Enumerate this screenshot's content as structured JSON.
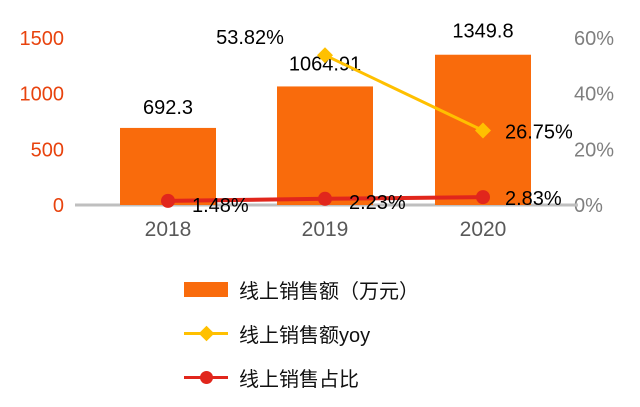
{
  "chart_data": {
    "type": "combo",
    "title": "",
    "categories": [
      "2018",
      "2019",
      "2020"
    ],
    "series": [
      {
        "name": "线上销售额（万元）",
        "type": "bar",
        "axis": "left",
        "color": "#F96B0C",
        "values": [
          692.3,
          1064.91,
          1349.8
        ],
        "labels": [
          "692.3",
          "1064.91",
          "1349.8"
        ],
        "label_offsets": [
          [
            0,
            -14,
            "middle"
          ],
          [
            0,
            -16,
            "middle"
          ],
          [
            0,
            -17,
            "middle"
          ]
        ]
      },
      {
        "name": "线上销售额yoy",
        "type": "line",
        "axis": "right",
        "color": "#FFC000",
        "marker": "diamond",
        "stroke_width": 3,
        "values": [
          null,
          53.82,
          26.75
        ],
        "labels": [
          null,
          "53.82%",
          "26.75%"
        ],
        "label_offsets": [
          null,
          [
            -75,
            -11,
            "middle"
          ],
          [
            22,
            8,
            "start"
          ]
        ]
      },
      {
        "name": "线上销售占比",
        "type": "line",
        "axis": "right",
        "color": "#E1261C",
        "marker": "circle",
        "stroke_width": 4,
        "values": [
          1.48,
          2.23,
          2.83
        ],
        "labels": [
          "1.48%",
          "2.23%",
          "2.83%"
        ],
        "label_offsets": [
          [
            24,
            11,
            "start"
          ],
          [
            24,
            10,
            "start"
          ],
          [
            22,
            8,
            "start"
          ]
        ]
      }
    ],
    "left_axis": {
      "min": 0,
      "max": 1500,
      "ticks": [
        "0",
        "500",
        "1000",
        "1500"
      ],
      "color": "#E8430E"
    },
    "right_axis": {
      "min": 0,
      "max": 60,
      "ticks": [
        "0%",
        "20%",
        "40%",
        "60%"
      ],
      "color": "#7F7F7F"
    },
    "x_axis": {
      "color": "#595959",
      "baseline_color": "#BFBFBF"
    },
    "data_label_color": "#000000",
    "grid": false,
    "legend_position": "bottom"
  }
}
